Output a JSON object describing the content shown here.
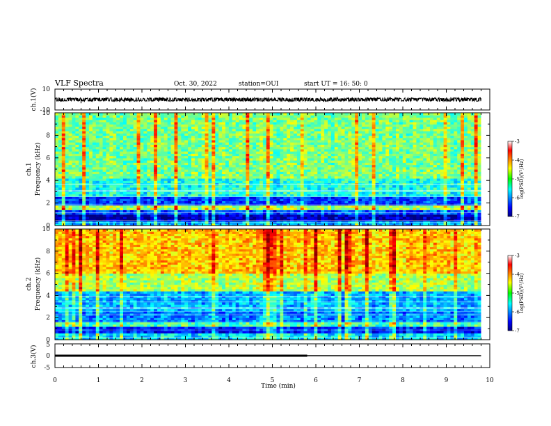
{
  "header": {
    "title": "VLF Spectra",
    "date": "Oct. 30, 2022",
    "station": "station=OUI",
    "start": "start  UT =   16: 50: 0"
  },
  "chart_data": {
    "type": "heatmap",
    "title": "VLF Spectra",
    "xlabel": "Time  (min)",
    "xlim": [
      0,
      10
    ],
    "xticks": [
      "0",
      "1",
      "2",
      "3",
      "4",
      "5",
      "6",
      "7",
      "8",
      "9",
      "10"
    ],
    "panels": [
      {
        "kind": "waveform",
        "ylabel": "ch.1(V)",
        "ylim": [
          -10,
          10
        ],
        "yticks": [
          "10",
          "-10"
        ],
        "level": 0,
        "amplitude": 1.2,
        "spike": {
          "t": 0.6,
          "value": -3.5
        },
        "end": 9.8
      },
      {
        "kind": "spectrogram",
        "ylabel": "ch.1\nFrequency (kHz)",
        "ylim": [
          0,
          10
        ],
        "yticks": [
          "0",
          "2",
          "4",
          "6",
          "8",
          "10"
        ],
        "bands": [
          {
            "f": [
              0,
              0.35
            ],
            "level": 0.3
          },
          {
            "f": [
              0.35,
              1.1
            ],
            "level": 0.05
          },
          {
            "f": [
              1.1,
              1.4
            ],
            "level": 0.2
          },
          {
            "f": [
              1.4,
              1.75
            ],
            "level": 0.55
          },
          {
            "f": [
              1.75,
              2.6
            ],
            "level": 0.18
          },
          {
            "f": [
              2.6,
              4.2
            ],
            "level": 0.4
          },
          {
            "f": [
              4.2,
              10
            ],
            "level": 0.5
          }
        ],
        "end": 9.8
      },
      {
        "kind": "spectrogram",
        "ylabel": "ch.2\nFrequency (kHz)",
        "ylim": [
          0,
          10
        ],
        "yticks": [
          "0",
          "2",
          "4",
          "6",
          "8",
          "10"
        ],
        "bands": [
          {
            "f": [
              0,
              0.6
            ],
            "level": 0.35
          },
          {
            "f": [
              0.6,
              1.2
            ],
            "level": 0.15
          },
          {
            "f": [
              1.2,
              1.6
            ],
            "level": 0.45
          },
          {
            "f": [
              1.6,
              2.6
            ],
            "level": 0.25
          },
          {
            "f": [
              2.6,
              4.5
            ],
            "level": 0.3
          },
          {
            "f": [
              4.5,
              6.0
            ],
            "level": 0.55
          },
          {
            "f": [
              6.0,
              10
            ],
            "level": 0.68
          }
        ],
        "end": 9.8
      },
      {
        "kind": "digital",
        "ylabel": "ch.3(V)",
        "ylim": [
          -5,
          5
        ],
        "yticks": [
          "5",
          "0",
          "-5"
        ],
        "level": 0,
        "thick_until": 5.8,
        "end": 9.8
      }
    ],
    "colorbar": {
      "label": "log(PSD)(V²/Hz)",
      "range": [
        -7,
        -3
      ],
      "ticks": [
        "-3",
        "-4",
        "-5",
        "-6",
        "-7"
      ]
    }
  }
}
